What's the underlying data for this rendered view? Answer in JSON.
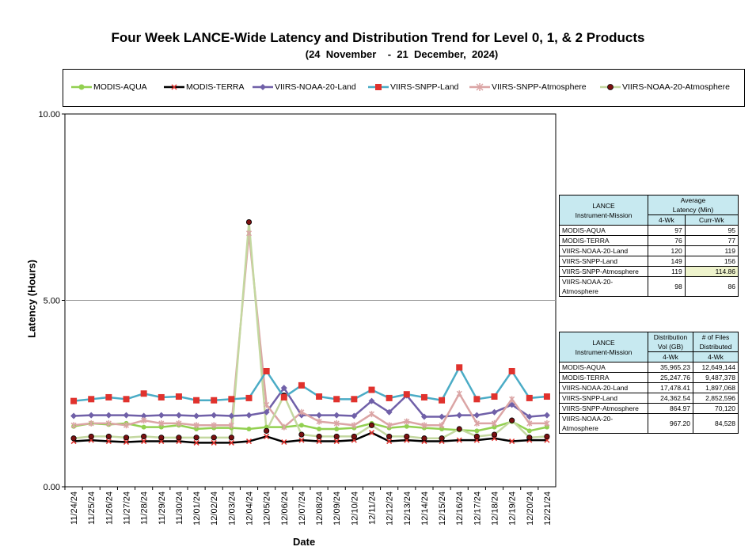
{
  "title": "Four Week LANCE-Wide Latency and Distribution Trend for Level 0, 1, & 2 Products",
  "subtitle": "(24  November    -  21  December,  2024)",
  "chart_data": {
    "type": "line",
    "title": "Four Week LANCE-Wide Latency and Distribution Trend for Level 0, 1, & 2 Products",
    "subtitle": "(24  November    -  21  December,  2024)",
    "xlabel": "Date",
    "ylabel": "Latency (Hours)",
    "ylim": [
      0,
      10
    ],
    "yticks": [
      "0.00",
      "5.00",
      "10.00"
    ],
    "grid": "horizontal at 5.00",
    "legend_position": "top",
    "categories": [
      "11/24/24",
      "11/25/24",
      "11/26/24",
      "11/27/24",
      "11/28/24",
      "11/29/24",
      "11/30/24",
      "12/01/24",
      "12/02/24",
      "12/03/24",
      "12/04/24",
      "12/05/24",
      "12/06/24",
      "12/07/24",
      "12/08/24",
      "12/09/24",
      "12/10/24",
      "12/11/24",
      "12/12/24",
      "12/13/24",
      "12/14/24",
      "12/15/24",
      "12/16/24",
      "12/17/24",
      "12/18/24",
      "12/19/24",
      "12/20/24",
      "12/21/24"
    ],
    "series": [
      {
        "name": "MODIS-AQUA",
        "color": "#92d050",
        "marker": "circle",
        "values": [
          1.62,
          1.7,
          1.67,
          1.7,
          1.6,
          1.6,
          1.65,
          1.55,
          1.58,
          1.58,
          1.55,
          1.6,
          1.6,
          1.65,
          1.55,
          1.55,
          1.58,
          1.7,
          1.58,
          1.62,
          1.58,
          1.55,
          1.52,
          1.5,
          1.6,
          1.75,
          1.5,
          1.6
        ]
      },
      {
        "name": "MODIS-TERRA",
        "color": "#000000",
        "marker": "x",
        "values": [
          1.22,
          1.25,
          1.22,
          1.2,
          1.22,
          1.22,
          1.22,
          1.18,
          1.18,
          1.18,
          1.22,
          1.35,
          1.2,
          1.25,
          1.22,
          1.22,
          1.25,
          1.45,
          1.22,
          1.25,
          1.22,
          1.22,
          1.25,
          1.25,
          1.3,
          1.22,
          1.25,
          1.25
        ]
      },
      {
        "name": "VIIRS-NOAA-20-Land",
        "color": "#7060a8",
        "marker": "diamond",
        "values": [
          1.9,
          1.92,
          1.92,
          1.92,
          1.9,
          1.92,
          1.92,
          1.9,
          1.92,
          1.9,
          1.92,
          2.0,
          2.65,
          1.92,
          1.92,
          1.92,
          1.9,
          2.3,
          2.0,
          2.45,
          1.88,
          1.88,
          1.92,
          1.92,
          2.0,
          2.2,
          1.88,
          1.92
        ]
      },
      {
        "name": "VIIRS-SNPP-Land",
        "color": "#4bacc6",
        "marker": "square",
        "marker_color": "#e0322d",
        "values": [
          2.3,
          2.35,
          2.4,
          2.35,
          2.5,
          2.4,
          2.42,
          2.32,
          2.32,
          2.35,
          2.38,
          3.1,
          2.4,
          2.72,
          2.42,
          2.35,
          2.35,
          2.6,
          2.38,
          2.48,
          2.4,
          2.32,
          3.2,
          2.35,
          2.42,
          3.1,
          2.38,
          2.42
        ]
      },
      {
        "name": "VIIRS-SNPP-Atmosphere",
        "color": "#dba5a5",
        "marker": "star",
        "values": [
          1.65,
          1.7,
          1.7,
          1.65,
          1.78,
          1.7,
          1.7,
          1.65,
          1.65,
          1.65,
          6.8,
          2.2,
          1.6,
          2.0,
          1.75,
          1.7,
          1.65,
          1.95,
          1.65,
          1.75,
          1.65,
          1.65,
          2.5,
          1.7,
          1.7,
          2.35,
          1.7,
          1.7
        ]
      },
      {
        "name": "VIIRS-NOAA-20-Atmosphere",
        "color": "#c4d8a0",
        "marker": "dot",
        "values": [
          1.3,
          1.35,
          1.35,
          1.32,
          1.35,
          1.32,
          1.32,
          1.32,
          1.32,
          1.32,
          7.1,
          1.5,
          2.45,
          1.4,
          1.35,
          1.35,
          1.35,
          1.65,
          1.35,
          1.35,
          1.3,
          1.3,
          1.55,
          1.35,
          1.4,
          1.78,
          1.32,
          1.35
        ]
      }
    ]
  },
  "latency_table": {
    "col1_header": "LANCE\nInstrument-Mission",
    "col2_header": "Average\nLatency (Min)",
    "sub_4wk": "4-Wk",
    "sub_curr": "Curr-Wk",
    "rows": [
      {
        "name": "MODIS-AQUA",
        "wk4": "97",
        "curr": "95"
      },
      {
        "name": "MODIS-TERRA",
        "wk4": "76",
        "curr": "77"
      },
      {
        "name": "VIIRS-NOAA-20-Land",
        "wk4": "120",
        "curr": "119"
      },
      {
        "name": "VIIRS-SNPP-Land",
        "wk4": "149",
        "curr": "156"
      },
      {
        "name": "VIIRS-SNPP-Atmosphere",
        "wk4": "119",
        "curr": "114.86"
      },
      {
        "name": "VIIRS-NOAA-20-Atmosphere",
        "wk4": "98",
        "curr": "86"
      }
    ]
  },
  "distribution_table": {
    "col1_header": "LANCE\nInstrument-Mission",
    "col2_header": "Distribution\nVol (GB)",
    "col3_header": "# of Files\nDistributed",
    "sub_vol": "4-Wk",
    "sub_files": "4-Wk",
    "rows": [
      {
        "name": "MODIS-AQUA",
        "vol": "35,965.23",
        "files": "12,649,144"
      },
      {
        "name": "MODIS-TERRA",
        "vol": "25,247.76",
        "files": "9,487,378"
      },
      {
        "name": "VIIRS-NOAA-20-Land",
        "vol": "17,478.41",
        "files": "1,897,068"
      },
      {
        "name": "VIIRS-SNPP-Land",
        "vol": "24,362.54",
        "files": "2,852,596"
      },
      {
        "name": "VIIRS-SNPP-Atmosphere",
        "vol": "864.97",
        "files": "70,120"
      },
      {
        "name": "VIIRS-NOAA-20-Atmosphere",
        "vol": "967.20",
        "files": "84,528"
      }
    ]
  }
}
